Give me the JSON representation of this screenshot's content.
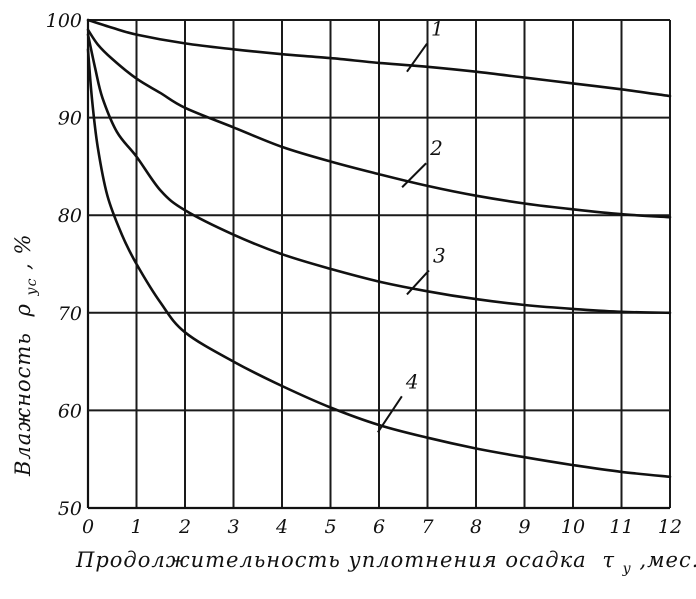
{
  "chart_data": {
    "type": "line",
    "title": "",
    "xlabel": "Продолжительность уплотнения осадка",
    "xlabel_symbol": "τ",
    "xlabel_subscript": "у",
    "xlabel_unit": ",мес.",
    "ylabel": "Влажность",
    "ylabel_symbol": "ρ",
    "ylabel_subscript": "ус",
    "ylabel_unit": ", %",
    "xlim": [
      0,
      12
    ],
    "ylim": [
      50,
      100
    ],
    "x_ticks": [
      0,
      1,
      2,
      3,
      4,
      5,
      6,
      7,
      8,
      9,
      10,
      11,
      12
    ],
    "x_tick_labels": [
      "0",
      "1",
      "2",
      "3",
      "4",
      "5",
      "6",
      "7",
      "8",
      "9",
      "10",
      "11",
      "12"
    ],
    "y_ticks": [
      50,
      60,
      70,
      80,
      90,
      100
    ],
    "y_tick_labels": [
      "50",
      "60",
      "70",
      "80",
      "90",
      "100"
    ],
    "grid": true,
    "series": [
      {
        "name": "1",
        "x": [
          0,
          0.5,
          1,
          2,
          3,
          4,
          5,
          6,
          7,
          8,
          9,
          10,
          11,
          12
        ],
        "y": [
          100,
          99.2,
          98.5,
          97.6,
          97.0,
          96.5,
          96.1,
          95.6,
          95.2,
          94.7,
          94.1,
          93.5,
          92.9,
          92.2
        ]
      },
      {
        "name": "2",
        "x": [
          0,
          0.2,
          0.5,
          1,
          1.5,
          2,
          3,
          4,
          5,
          6,
          7,
          8,
          9,
          10,
          11,
          12
        ],
        "y": [
          99,
          97.5,
          96,
          94,
          92.5,
          91,
          89,
          87,
          85.5,
          84.2,
          83.0,
          82.0,
          81.2,
          80.6,
          80.1,
          79.8
        ]
      },
      {
        "name": "3",
        "x": [
          0,
          0.15,
          0.3,
          0.6,
          1,
          1.5,
          2,
          3,
          4,
          5,
          6,
          7,
          8,
          9,
          10,
          11,
          12
        ],
        "y": [
          98.5,
          95,
          92,
          88.5,
          86,
          82.5,
          80.5,
          78,
          76,
          74.5,
          73.2,
          72.2,
          71.4,
          70.8,
          70.4,
          70.1,
          70.0
        ]
      },
      {
        "name": "4",
        "x": [
          0,
          0.08,
          0.2,
          0.4,
          0.7,
          1,
          1.5,
          2,
          3,
          4,
          5,
          6,
          7,
          8,
          9,
          10,
          11,
          12
        ],
        "y": [
          97,
          92,
          87,
          82,
          78,
          75,
          71,
          68,
          65,
          62.5,
          60.3,
          58.5,
          57.2,
          56.1,
          55.2,
          54.4,
          53.7,
          53.2
        ]
      }
    ]
  }
}
